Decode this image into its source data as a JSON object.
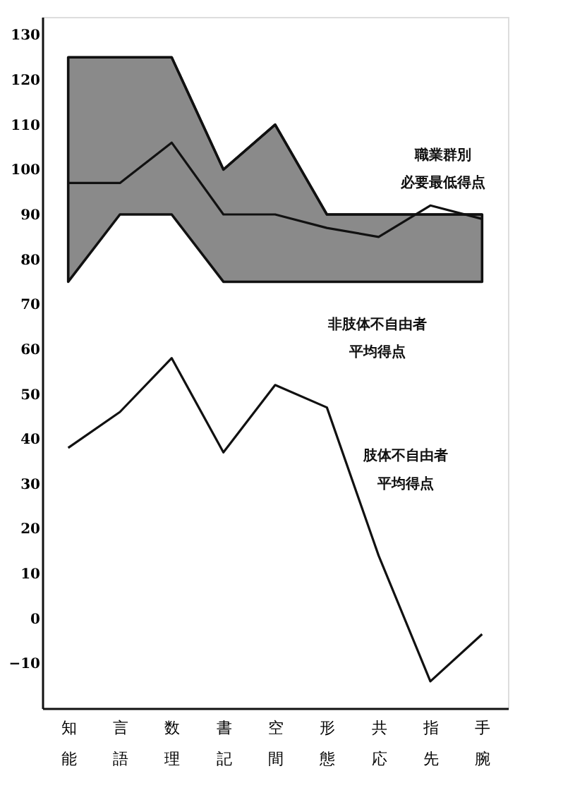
{
  "chart_data": {
    "type": "line",
    "categories": [
      "知能",
      "言語",
      "数理",
      "書記",
      "空間",
      "形態",
      "共応",
      "指先",
      "手腕"
    ],
    "series": [
      {
        "color": "#111111",
        "values": [
          125,
          125,
          125,
          100,
          110,
          90,
          90,
          90,
          90
        ],
        "lower": [
          75,
          90,
          90,
          75,
          75,
          75,
          75,
          75,
          75
        ],
        "upper": [
          125,
          125,
          125,
          100,
          110,
          90,
          90,
          90,
          90
        ]
      },
      {
        "color": "#111111",
        "values": [
          97,
          97,
          106,
          90,
          90,
          87,
          85,
          92,
          89
        ]
      },
      {
        "color": "#111111",
        "values": [
          38,
          46,
          58,
          37,
          52,
          47,
          14,
          -14,
          -3.5
        ]
      }
    ],
    "ylim": [
      -20,
      134
    ],
    "yticks": [
      -10,
      0,
      10,
      20,
      30,
      40,
      50,
      60,
      70,
      80,
      90,
      100,
      110,
      120,
      130
    ],
    "grid": false,
    "annotations": [
      "職業群別",
      "必要最低得点",
      "非肢体不自由者",
      "平均得点",
      "肢体不自由者",
      "平均得点"
    ]
  }
}
